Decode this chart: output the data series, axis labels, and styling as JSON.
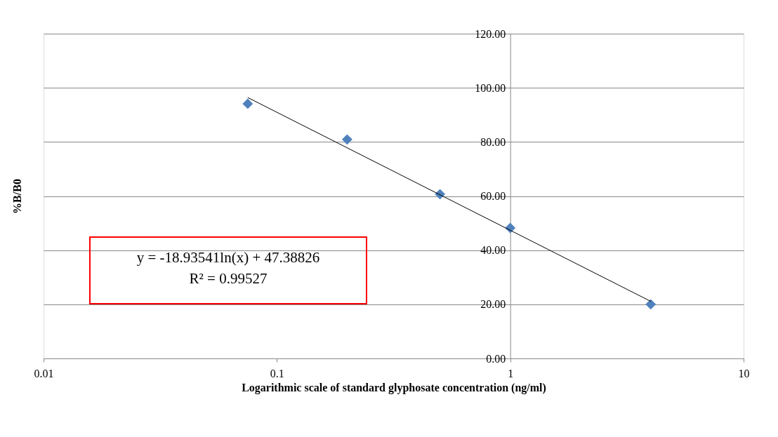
{
  "chart_data": {
    "type": "scatter",
    "xlabel": "Logarithmic scale of standard glyphosate concentration (ng/ml)",
    "ylabel": "%B/B0",
    "log": "x",
    "xlim": [
      0.01,
      10
    ],
    "xticks": [
      0.01,
      0.1,
      1,
      10
    ],
    "ylim": [
      0,
      120
    ],
    "yticks": [
      {
        "value": 0,
        "label": "0.00"
      },
      {
        "value": 20,
        "label": "20.00"
      },
      {
        "value": 40,
        "label": "40.00"
      },
      {
        "value": 60,
        "label": "60.00"
      },
      {
        "value": 80,
        "label": "80.00"
      },
      {
        "value": 100,
        "label": "100.00"
      },
      {
        "value": 120,
        "label": "120.00"
      }
    ],
    "grid": "y",
    "marker": "diamond",
    "series": [
      {
        "color": "#4f81bd",
        "x": [
          0.075,
          0.2,
          0.5,
          1,
          4
        ],
        "values": [
          94.1,
          80.9,
          60.7,
          48.2,
          20.0
        ]
      },
      {
        "type": "line",
        "color": "#000000",
        "marker": "none",
        "x": [
          0.075,
          4
        ],
        "values": [
          96.4,
          21.1
        ]
      }
    ],
    "annotations": [
      "y = -18.93541ln(x) + 47.38826",
      "R² = 0.99527"
    ]
  }
}
